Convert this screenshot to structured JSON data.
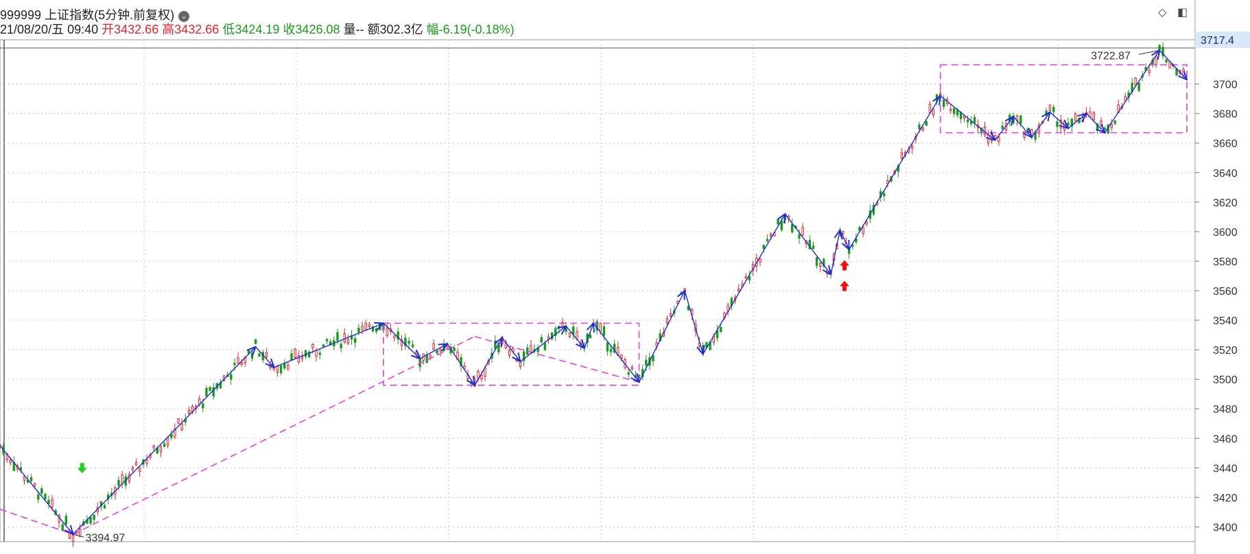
{
  "header": {
    "code_name": "999999 上证指数",
    "mode": "(5分钟.前复权)",
    "date_time": "21/08/20/五 09:40",
    "open_label": "开",
    "open": "3432.66",
    "high_label": "高",
    "high": "3432.66",
    "low_label": "低",
    "low": "3424.19",
    "close_label": "收",
    "close": "3426.08",
    "volume_label": "量",
    "volume": "--",
    "amount_label": "额",
    "amount": "302.3亿",
    "range_label": "幅",
    "range": "-6.19(-0.18%)"
  },
  "toolbar": {
    "diamond_icon": "diamond-icon",
    "panel_icon": "panel-toggle-icon"
  },
  "colors": {
    "up": "#e0242b",
    "down": "#1a9a1a",
    "stroke": "#1d2bd6",
    "dash": "#e040e0",
    "grid": "#c8c8c8",
    "price_box": "#d8e8f8",
    "arrow_up": "#ee1111",
    "arrow_down": "#22cc22"
  },
  "chart_data": {
    "type": "candlestick",
    "ylim": [
      3390,
      3730
    ],
    "y_ticks": [
      "3400",
      "3420",
      "3440",
      "3460",
      "3480",
      "3500",
      "3520",
      "3540",
      "3560",
      "3580",
      "3600",
      "3620",
      "3640",
      "3660",
      "3680",
      "3700"
    ],
    "current_price": "3717.4",
    "high_label": "3722.87",
    "low_label": "3394.97",
    "x_count": 100,
    "price_path": [
      [
        0,
        3455
      ],
      [
        8,
        3394.97
      ],
      [
        28,
        3522
      ],
      [
        30,
        3508
      ],
      [
        42,
        3538
      ],
      [
        46,
        3514
      ],
      [
        49,
        3524
      ],
      [
        52,
        3496
      ],
      [
        55,
        3528
      ],
      [
        57,
        3512
      ],
      [
        62,
        3536
      ],
      [
        64,
        3521
      ],
      [
        65,
        3538
      ],
      [
        70,
        3498
      ],
      [
        75,
        3560
      ],
      [
        77,
        3517
      ],
      [
        86,
        3612
      ],
      [
        91,
        3571
      ],
      [
        92,
        3601
      ],
      [
        93,
        3588
      ],
      [
        103,
        3692
      ],
      [
        109,
        3662
      ],
      [
        111,
        3678
      ],
      [
        113,
        3664
      ],
      [
        115,
        3681
      ],
      [
        117,
        3670
      ],
      [
        119,
        3680
      ],
      [
        121,
        3667
      ],
      [
        127,
        3722.87
      ],
      [
        130,
        3703
      ]
    ],
    "strokes": [
      [
        0,
        3455
      ],
      [
        8,
        3394.97
      ],
      [
        28,
        3522
      ],
      [
        30,
        3508
      ],
      [
        42,
        3538
      ],
      [
        46,
        3514
      ],
      [
        49,
        3524
      ],
      [
        52,
        3496
      ],
      [
        55,
        3528
      ],
      [
        57,
        3512
      ],
      [
        62,
        3536
      ],
      [
        64,
        3521
      ],
      [
        65,
        3538
      ],
      [
        70,
        3498
      ],
      [
        75,
        3560
      ],
      [
        77,
        3517
      ],
      [
        86,
        3612
      ],
      [
        91,
        3571
      ],
      [
        92,
        3601
      ],
      [
        93,
        3588
      ],
      [
        103,
        3692
      ],
      [
        109,
        3662
      ],
      [
        111,
        3678
      ],
      [
        113,
        3664
      ],
      [
        115,
        3681
      ],
      [
        117,
        3670
      ],
      [
        119,
        3680
      ],
      [
        121,
        3667
      ],
      [
        127,
        3722.87
      ],
      [
        130,
        3703
      ]
    ],
    "x_span": [
      0,
      130
    ],
    "boxes": [
      {
        "x0": 42,
        "x1": 70,
        "y0": 3496,
        "y1": 3538
      },
      {
        "x0": 103,
        "x1": 130,
        "y0": 3667,
        "y1": 3713
      }
    ],
    "dashed_lines": [
      [
        [
          0,
          3412
        ],
        [
          8,
          3394.97
        ]
      ],
      [
        [
          8,
          3394.97
        ],
        [
          52,
          3529
        ]
      ],
      [
        [
          52,
          3529
        ],
        [
          70,
          3498
        ]
      ]
    ],
    "signal_arrows": [
      {
        "type": "down",
        "x": 9,
        "y": 3440
      },
      {
        "type": "up",
        "x": 92.5,
        "y": 3577
      },
      {
        "type": "up",
        "x": 92.5,
        "y": 3563
      }
    ]
  }
}
